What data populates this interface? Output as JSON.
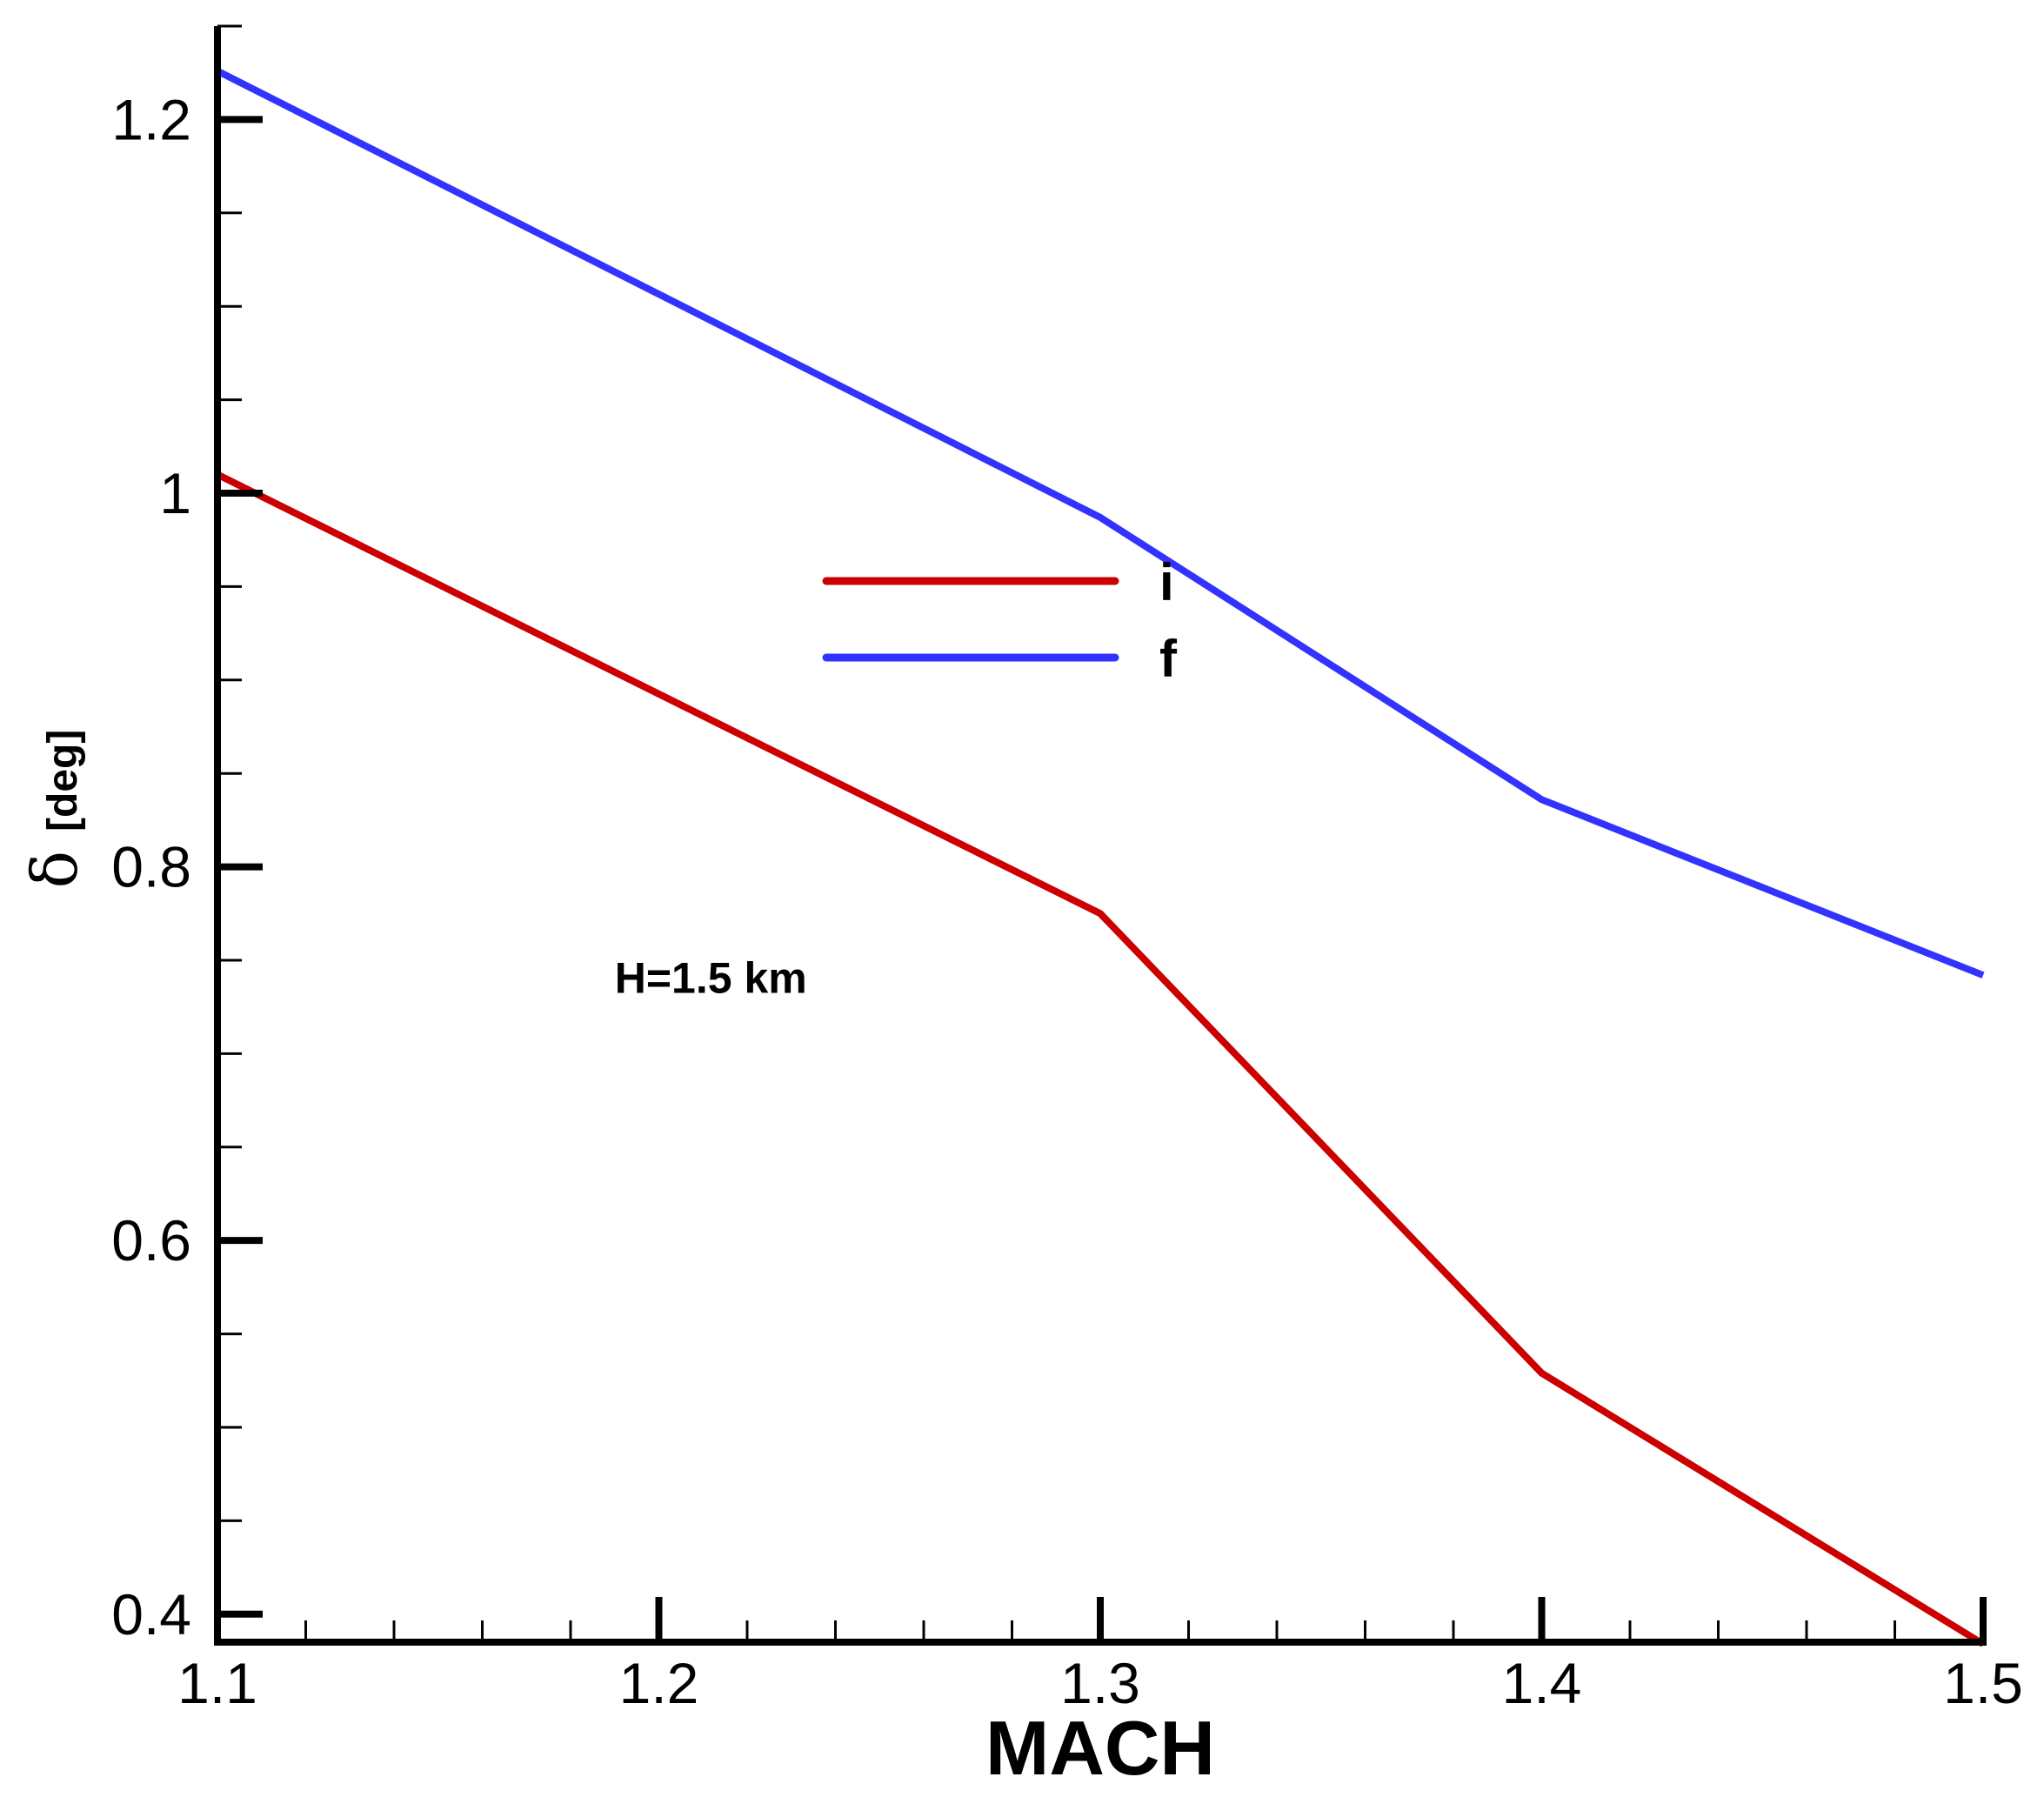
{
  "chart_data": {
    "type": "line",
    "title": "",
    "xlabel": "MACH",
    "ylabel_symbol": "δ",
    "ylabel_unit": "[deg]",
    "xlim": [
      1.1,
      1.5
    ],
    "ylim": [
      0.385,
      1.25
    ],
    "x_ticks": [
      1.1,
      1.2,
      1.3,
      1.4,
      1.5
    ],
    "x_tick_labels": [
      "1.1",
      "1.2",
      "1.3",
      "1.4",
      "1.5"
    ],
    "x_minor_step": 0.02,
    "y_ticks": [
      0.4,
      0.6,
      0.8,
      1.0,
      1.2
    ],
    "y_tick_labels": [
      "0.4",
      "0.6",
      "0.8",
      "1",
      "1.2"
    ],
    "y_minor_step": 0.05,
    "grid": false,
    "legend_position": "center",
    "series": [
      {
        "name": "i",
        "color": "#cc0000",
        "x": [
          1.1,
          1.3,
          1.4,
          1.5
        ],
        "y": [
          1.01,
          0.775,
          0.529,
          0.384
        ]
      },
      {
        "name": "f",
        "color": "#3333ff",
        "x": [
          1.1,
          1.3,
          1.4,
          1.5
        ],
        "y": [
          1.226,
          0.987,
          0.836,
          0.742
        ]
      }
    ],
    "annotations": [
      {
        "text": "H=1.5 km",
        "x": 1.19,
        "y": 0.741
      }
    ]
  }
}
